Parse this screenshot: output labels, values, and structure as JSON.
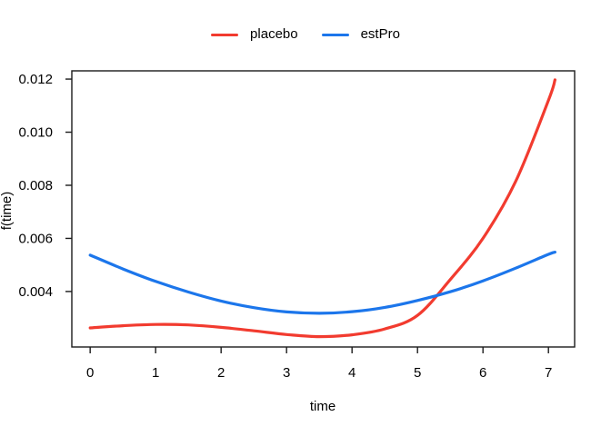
{
  "legend": {
    "entries": [
      {
        "label": "placebo",
        "color": "#f23b2f"
      },
      {
        "label": "estPro",
        "color": "#1c76eb"
      }
    ]
  },
  "chart_data": {
    "type": "line",
    "title": "",
    "xlabel": "time",
    "ylabel": "f(time)",
    "x": [
      0,
      0.5,
      1,
      1.5,
      2,
      2.5,
      3,
      3.5,
      4,
      4.5,
      5,
      5.5,
      6,
      6.5,
      7,
      7.1
    ],
    "series": [
      {
        "name": "placebo",
        "color": "#f23b2f",
        "values": [
          0.00263,
          0.00271,
          0.00276,
          0.00274,
          0.00265,
          0.00252,
          0.00238,
          0.0023,
          0.00237,
          0.00259,
          0.0031,
          0.00445,
          0.006,
          0.00815,
          0.0112,
          0.01197
        ]
      },
      {
        "name": "estPro",
        "color": "#1c76eb",
        "values": [
          0.00537,
          0.00485,
          0.00438,
          0.00398,
          0.00364,
          0.00339,
          0.00323,
          0.00318,
          0.00324,
          0.0034,
          0.00366,
          0.00399,
          0.0044,
          0.00488,
          0.0054,
          0.00548
        ]
      }
    ],
    "xlim": [
      -0.28,
      7.4
    ],
    "ylim": [
      0.00191,
      0.01231
    ],
    "xticks": [
      0,
      1,
      2,
      3,
      4,
      5,
      6,
      7
    ],
    "xtick_labels": [
      "0",
      "1",
      "2",
      "3",
      "4",
      "5",
      "6",
      "7"
    ],
    "yticks": [
      0.004,
      0.006,
      0.008,
      0.01,
      0.012
    ],
    "ytick_labels": [
      "0.004",
      "0.006",
      "0.008",
      "0.010",
      "0.012"
    ],
    "grid": false,
    "legend_position": "top-center"
  }
}
